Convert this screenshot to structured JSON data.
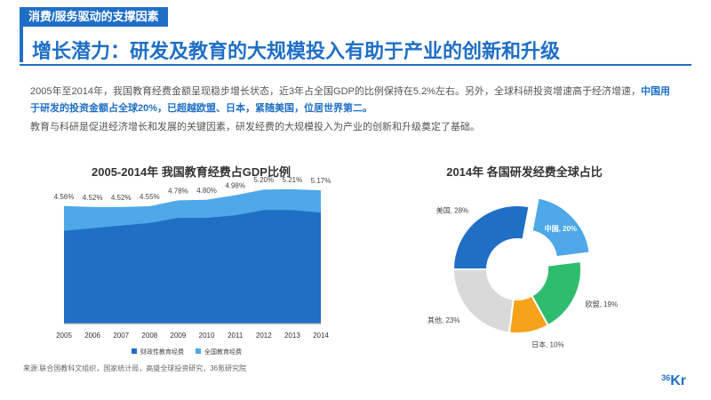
{
  "header": {
    "tag": "消费/服务驱动的支撑因素",
    "title": "增长潜力：研发及教育的大规模投入有助于产业的创新和升级"
  },
  "body": {
    "p1_a": "2005年至2014年，我国教育经费金额呈现稳步增长状态，近3年占全国GDP的比例保持在5.2%左右。另外，全球科研投资增速高于经济增速，",
    "p1_b": "中国用于研发的投资金额占全球20%，已超越欧盟、日本，紧随美国，位居世界第二。",
    "p2": "教育与科研是促进经济增长和发展的关键因素，研发经费的大规模投入为产业的创新和升级奠定了基础。"
  },
  "footer": {
    "source": "来源:联合国教科文组织，国家统计局，高盛全球投资研究，36氪研究院",
    "logo_num": "36",
    "logo_text": "Kr"
  },
  "chart_data": [
    {
      "type": "area",
      "title": "2005-2014年  我国教育经费占GDP比例",
      "categories": [
        "2005",
        "2006",
        "2007",
        "2008",
        "2009",
        "2010",
        "2011",
        "2012",
        "2013",
        "2014"
      ],
      "labels": [
        "4.56%",
        "4.52%",
        "4.52%",
        "4.55%",
        "4.78%",
        "4.80%",
        "4.98%",
        "5.20%",
        "5.21%",
        "5.17%"
      ],
      "series": [
        {
          "name": "财政性教育经费",
          "values": [
            3.6,
            3.7,
            3.8,
            3.9,
            4.1,
            4.1,
            4.2,
            4.4,
            4.4,
            4.3
          ],
          "color": "#1f6fc5"
        },
        {
          "name": "全国教育经费",
          "values": [
            4.56,
            4.52,
            4.52,
            4.55,
            4.78,
            4.8,
            4.98,
            5.2,
            5.21,
            5.17
          ],
          "color": "#4fa8e8"
        }
      ],
      "ylim": [
        0,
        6
      ],
      "legend": "bottom"
    },
    {
      "type": "pie",
      "title": "2014年  各国研发经费全球占比",
      "slices": [
        {
          "label": "中国, 20%",
          "value": 20,
          "color": "#4fa8e8",
          "exploded": true
        },
        {
          "label": "欧盟, 19%",
          "value": 19,
          "color": "#2ebd6e"
        },
        {
          "label": "日本, 10%",
          "value": 10,
          "color": "#f6a21b"
        },
        {
          "label": "其他, 23%",
          "value": 23,
          "color": "#d9d9d9"
        },
        {
          "label": "美国, 28%",
          "value": 28,
          "color": "#1f6fc5"
        }
      ]
    }
  ]
}
